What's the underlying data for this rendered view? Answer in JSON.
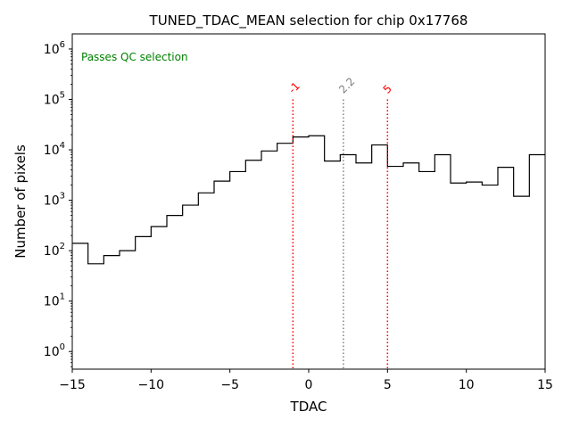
{
  "chart_data": {
    "type": "histogram",
    "title": "TUNED_TDAC_MEAN selection for chip 0x17768",
    "xlabel": "TDAC",
    "ylabel": "Number of pixels",
    "xlim": [
      -15,
      15
    ],
    "ylim_log10": [
      -0.35,
      6.3
    ],
    "yscale": "log",
    "bin_edges": [
      -15,
      -14,
      -13,
      -12,
      -11,
      -10,
      -9,
      -8,
      -7,
      -6,
      -5,
      -4,
      -3,
      -2,
      -1,
      0,
      1,
      2,
      3,
      4,
      5,
      6,
      7,
      8,
      9,
      10,
      11,
      12,
      13,
      14,
      15
    ],
    "counts": [
      140,
      55,
      80,
      100,
      190,
      300,
      500,
      800,
      1400,
      2400,
      3700,
      6200,
      9500,
      13500,
      18000,
      19000,
      6000,
      8000,
      5500,
      12500,
      4700,
      5500,
      3700,
      8000,
      2200,
      2300,
      2000,
      4500,
      1200,
      8000
    ],
    "x_ticks": [
      -15,
      -10,
      -5,
      0,
      5,
      10,
      15
    ],
    "x_tick_labels": [
      "−15",
      "−10",
      "−5",
      "0",
      "5",
      "10",
      "15"
    ],
    "y_ticks_exp": [
      0,
      1,
      2,
      3,
      4,
      5,
      6
    ],
    "y_tick_labels": [
      {
        "base": "10",
        "exp": "0"
      },
      {
        "base": "10",
        "exp": "1"
      },
      {
        "base": "10",
        "exp": "2"
      },
      {
        "base": "10",
        "exp": "3"
      },
      {
        "base": "10",
        "exp": "4"
      },
      {
        "base": "10",
        "exp": "5"
      },
      {
        "base": "10",
        "exp": "6"
      }
    ],
    "annotation": {
      "text": "Passes QC selection",
      "color": "#008000",
      "position": "top-left"
    },
    "vertical_lines": [
      {
        "x": -1,
        "label": "-1",
        "color": "#ff0000",
        "top_value": 100000
      },
      {
        "x": 2.2,
        "label": "2.2",
        "color": "#808080",
        "top_value": 100000
      },
      {
        "x": 5,
        "label": "5",
        "color": "#ff0000",
        "top_value": 100000
      }
    ],
    "line_color": "#000000"
  }
}
